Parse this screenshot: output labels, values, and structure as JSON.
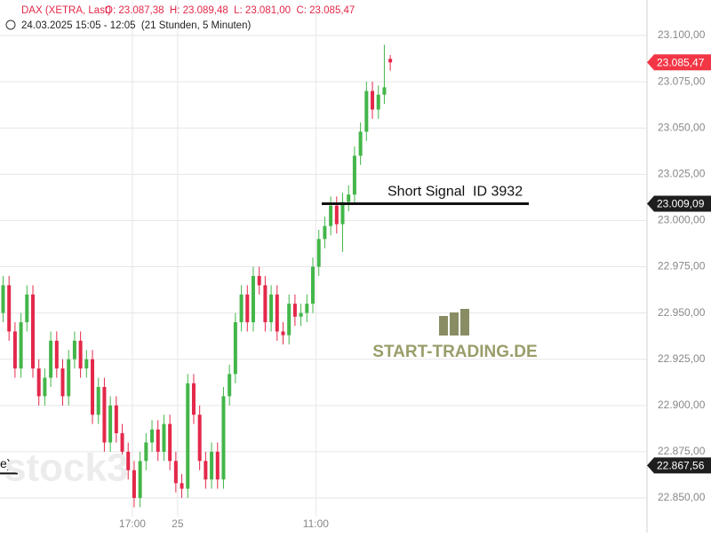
{
  "header": {
    "symbol": "DAX (XETRA, Last)",
    "ohlc": "O: 23.087,38  H: 23.089,48  L: 23.081,00  C: 23.085,47",
    "range": "24.03.2025 15:05 - 12:05  (21 Stunden, 5 Minuten)"
  },
  "watermark": {
    "brand": "START-TRADING.DE",
    "logo": "stock3"
  },
  "chart_data": {
    "type": "candlestick",
    "open": [
      22950,
      22965,
      22940,
      22920,
      22945,
      22960,
      22920,
      22905,
      22915,
      22935,
      22920,
      22905,
      22925,
      22935,
      22920,
      22925,
      22895,
      22910,
      22880,
      22900,
      22885,
      22875,
      22865,
      22850,
      22870,
      22880,
      22887,
      22875,
      22890,
      22870,
      22858,
      22855,
      22912,
      22895,
      22870,
      22860,
      22875,
      22860,
      22905,
      22917,
      22945,
      22960,
      22945,
      22970,
      22965,
      22945,
      22960,
      22940,
      22938,
      22955,
      22948,
      22950,
      22955,
      22975,
      22990,
      22997,
      23008,
      22998,
      23010,
      23014,
      23035,
      23048,
      23070,
      23060,
      23068,
      23087.38
    ],
    "high": [
      22970,
      22970,
      22945,
      22950,
      22965,
      22965,
      22925,
      22920,
      22940,
      22940,
      22925,
      22930,
      22940,
      22940,
      22930,
      22930,
      22915,
      22915,
      22905,
      22905,
      22890,
      22880,
      22870,
      22875,
      22885,
      22892,
      22892,
      22895,
      22895,
      22875,
      22863,
      22917,
      22917,
      22900,
      22875,
      22880,
      22880,
      22910,
      22922,
      22950,
      22965,
      22965,
      22975,
      22975,
      22970,
      22965,
      22965,
      22945,
      22960,
      22960,
      22955,
      22960,
      22980,
      22995,
      23002,
      23013,
      23013,
      23015,
      23019,
      23040,
      23053,
      23075,
      23075,
      23073,
      23095,
      23089.48
    ],
    "low": [
      22945,
      22935,
      22915,
      22915,
      22940,
      22915,
      22900,
      22900,
      22910,
      22915,
      22900,
      22900,
      22920,
      22915,
      22915,
      22890,
      22890,
      22875,
      22875,
      22880,
      22870,
      22860,
      22845,
      22845,
      22865,
      22875,
      22870,
      22870,
      22865,
      22853,
      22850,
      22850,
      22890,
      22865,
      22855,
      22855,
      22855,
      22855,
      22900,
      22912,
      22940,
      22940,
      22940,
      22960,
      22940,
      22940,
      22935,
      22933,
      22933,
      22943,
      22943,
      22945,
      22950,
      22970,
      22985,
      22992,
      22993,
      22983,
      23005,
      23009,
      23030,
      23043,
      23055,
      23055,
      23063,
      23081.0
    ],
    "close": [
      22965,
      22940,
      22920,
      22945,
      22960,
      22920,
      22905,
      22915,
      22935,
      22920,
      22905,
      22925,
      22935,
      22920,
      22925,
      22895,
      22910,
      22880,
      22900,
      22885,
      22875,
      22865,
      22850,
      22870,
      22880,
      22887,
      22875,
      22890,
      22870,
      22858,
      22855,
      22912,
      22895,
      22870,
      22860,
      22875,
      22860,
      22905,
      22917,
      22945,
      22960,
      22945,
      22970,
      22965,
      22945,
      22960,
      22940,
      22938,
      22955,
      22948,
      22950,
      22955,
      22975,
      22990,
      22997,
      23008,
      22998,
      23010,
      23014,
      23035,
      23048,
      23070,
      23060,
      23068,
      23072,
      23085.47
    ],
    "up_color": "#43b649",
    "down_color": "#e3284a",
    "xlim": [
      -0.52,
      108.1
    ],
    "xticks": [
      {
        "value": 21.7,
        "label": "17:00"
      },
      {
        "value": 29.3,
        "label": "25"
      },
      {
        "value": 52.5,
        "label": "11:00"
      }
    ],
    "ylim": [
      22831.3,
      23119.2
    ],
    "yticks": [
      {
        "value": 22850,
        "label": "22.850,00"
      },
      {
        "value": 22875,
        "label": "22.875,00"
      },
      {
        "value": 22900,
        "label": "22.900,00"
      },
      {
        "value": 22925,
        "label": "22.925,00"
      },
      {
        "value": 22950,
        "label": "22.950,00"
      },
      {
        "value": 22975,
        "label": "22.975,00"
      },
      {
        "value": 23000,
        "label": "23.000,00"
      },
      {
        "value": 23025,
        "label": "23.025,00"
      },
      {
        "value": 23050,
        "label": "23.050,00"
      },
      {
        "value": 23075,
        "label": "23.075,00"
      },
      {
        "value": 23100,
        "label": "23.100,00"
      }
    ],
    "grid": true,
    "price_tags": [
      {
        "value": 23085.47,
        "label": "23.085,47",
        "color": "#f23645"
      },
      {
        "value": 23009.09,
        "label": "23.009,09",
        "color": "#1e1e1e"
      },
      {
        "value": 22867.56,
        "label": "22.867,56",
        "color": "#1e1e1e"
      }
    ],
    "annotations": [
      {
        "value": 23009.09,
        "label": "Short Signal  ID 3932"
      },
      {
        "value": 22867.56,
        "label": "e)"
      }
    ]
  }
}
